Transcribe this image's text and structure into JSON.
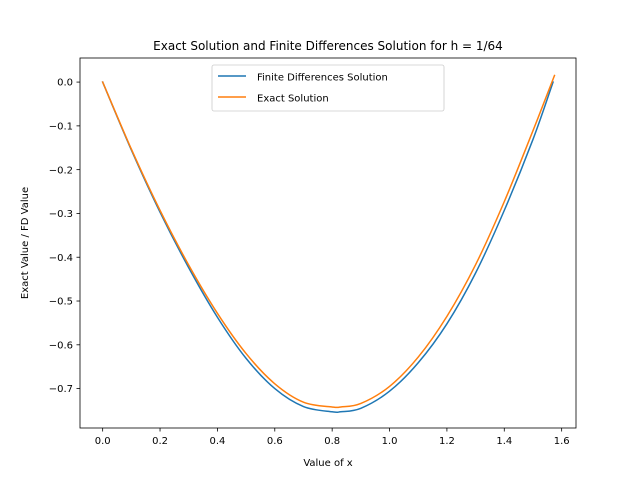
{
  "chart_data": {
    "type": "line",
    "title": "Exact Solution and Finite Differences Solution for h = 1/64",
    "xlabel": "Value of x",
    "ylabel": "Exact Value / FD Value",
    "xlim": [
      -0.079,
      1.65
    ],
    "ylim": [
      -0.79,
      0.055
    ],
    "xticks": [
      0.0,
      0.2,
      0.4,
      0.6,
      0.8,
      1.0,
      1.2,
      1.4,
      1.6
    ],
    "xtick_labels": [
      "0.0",
      "0.2",
      "0.4",
      "0.6",
      "0.8",
      "1.0",
      "1.2",
      "1.4",
      "1.6"
    ],
    "yticks": [
      0.0,
      -0.1,
      -0.2,
      -0.3,
      -0.4,
      -0.5,
      -0.6,
      -0.7
    ],
    "ytick_labels": [
      "0.0",
      "−0.1",
      "−0.2",
      "−0.3",
      "−0.4",
      "−0.5",
      "−0.6",
      "−0.7"
    ],
    "grid": false,
    "legend_position": "top-center",
    "series": [
      {
        "name": "Finite Differences Solution",
        "color": "#1f77b4",
        "x": [
          0.0,
          0.1,
          0.2,
          0.3,
          0.4,
          0.5,
          0.6,
          0.7,
          0.8,
          0.83,
          0.9,
          1.0,
          1.1,
          1.2,
          1.3,
          1.4,
          1.5,
          1.57
        ],
        "y": [
          0.0,
          -0.155,
          -0.297,
          -0.424,
          -0.537,
          -0.631,
          -0.7,
          -0.741,
          -0.753,
          -0.753,
          -0.745,
          -0.706,
          -0.641,
          -0.552,
          -0.436,
          -0.293,
          -0.131,
          0.0
        ]
      },
      {
        "name": "Exact Solution",
        "color": "#ff7f0e",
        "x": [
          0.0,
          0.1,
          0.2,
          0.3,
          0.4,
          0.5,
          0.6,
          0.7,
          0.8,
          0.83,
          0.9,
          1.0,
          1.1,
          1.2,
          1.3,
          1.4,
          1.5,
          1.575
        ],
        "y": [
          0.0,
          -0.153,
          -0.293,
          -0.418,
          -0.528,
          -0.62,
          -0.689,
          -0.731,
          -0.742,
          -0.742,
          -0.734,
          -0.695,
          -0.628,
          -0.535,
          -0.417,
          -0.273,
          -0.111,
          0.015
        ]
      }
    ]
  }
}
